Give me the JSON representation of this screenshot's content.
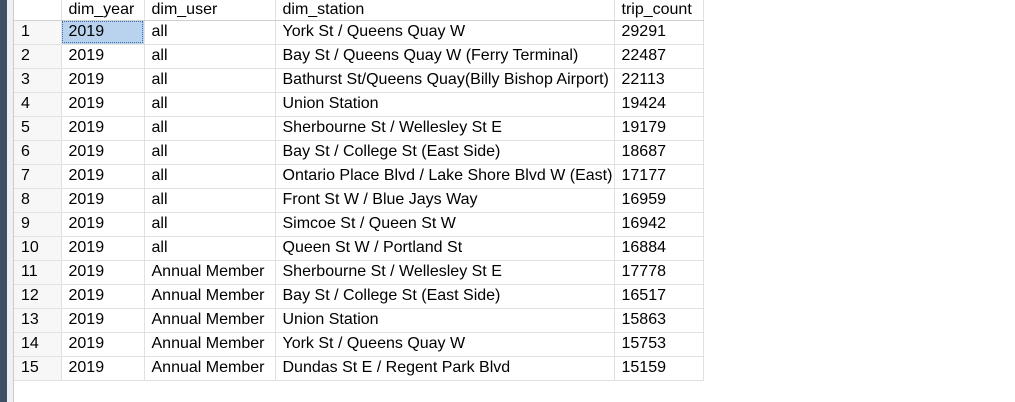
{
  "columns": [
    "dim_year",
    "dim_user",
    "dim_station",
    "trip_count"
  ],
  "rows": [
    {
      "n": "1",
      "year": "2019",
      "user": "all",
      "station": "York St / Queens Quay W",
      "count": "29291"
    },
    {
      "n": "2",
      "year": "2019",
      "user": "all",
      "station": "Bay St / Queens Quay W (Ferry Terminal)",
      "count": "22487"
    },
    {
      "n": "3",
      "year": "2019",
      "user": "all",
      "station": "Bathurst St/Queens Quay(Billy Bishop Airport)",
      "count": "22113"
    },
    {
      "n": "4",
      "year": "2019",
      "user": "all",
      "station": "Union Station",
      "count": "19424"
    },
    {
      "n": "5",
      "year": "2019",
      "user": "all",
      "station": "Sherbourne St / Wellesley St E",
      "count": "19179"
    },
    {
      "n": "6",
      "year": "2019",
      "user": "all",
      "station": "Bay St / College St (East Side)",
      "count": "18687"
    },
    {
      "n": "7",
      "year": "2019",
      "user": "all",
      "station": "Ontario Place Blvd / Lake Shore Blvd W (East)",
      "count": "17177"
    },
    {
      "n": "8",
      "year": "2019",
      "user": "all",
      "station": "Front St W / Blue Jays Way",
      "count": "16959"
    },
    {
      "n": "9",
      "year": "2019",
      "user": "all",
      "station": "Simcoe St / Queen St W",
      "count": "16942"
    },
    {
      "n": "10",
      "year": "2019",
      "user": "all",
      "station": "Queen St W / Portland St",
      "count": "16884"
    },
    {
      "n": "11",
      "year": "2019",
      "user": "Annual Member",
      "station": "Sherbourne St / Wellesley St E",
      "count": "17778"
    },
    {
      "n": "12",
      "year": "2019",
      "user": "Annual Member",
      "station": "Bay St / College St (East Side)",
      "count": "16517"
    },
    {
      "n": "13",
      "year": "2019",
      "user": "Annual Member",
      "station": "Union Station",
      "count": "15863"
    },
    {
      "n": "14",
      "year": "2019",
      "user": "Annual Member",
      "station": "York St / Queens Quay W",
      "count": "15753"
    },
    {
      "n": "15",
      "year": "2019",
      "user": "Annual Member",
      "station": "Dundas St E / Regent Park Blvd",
      "count": "15159"
    }
  ]
}
